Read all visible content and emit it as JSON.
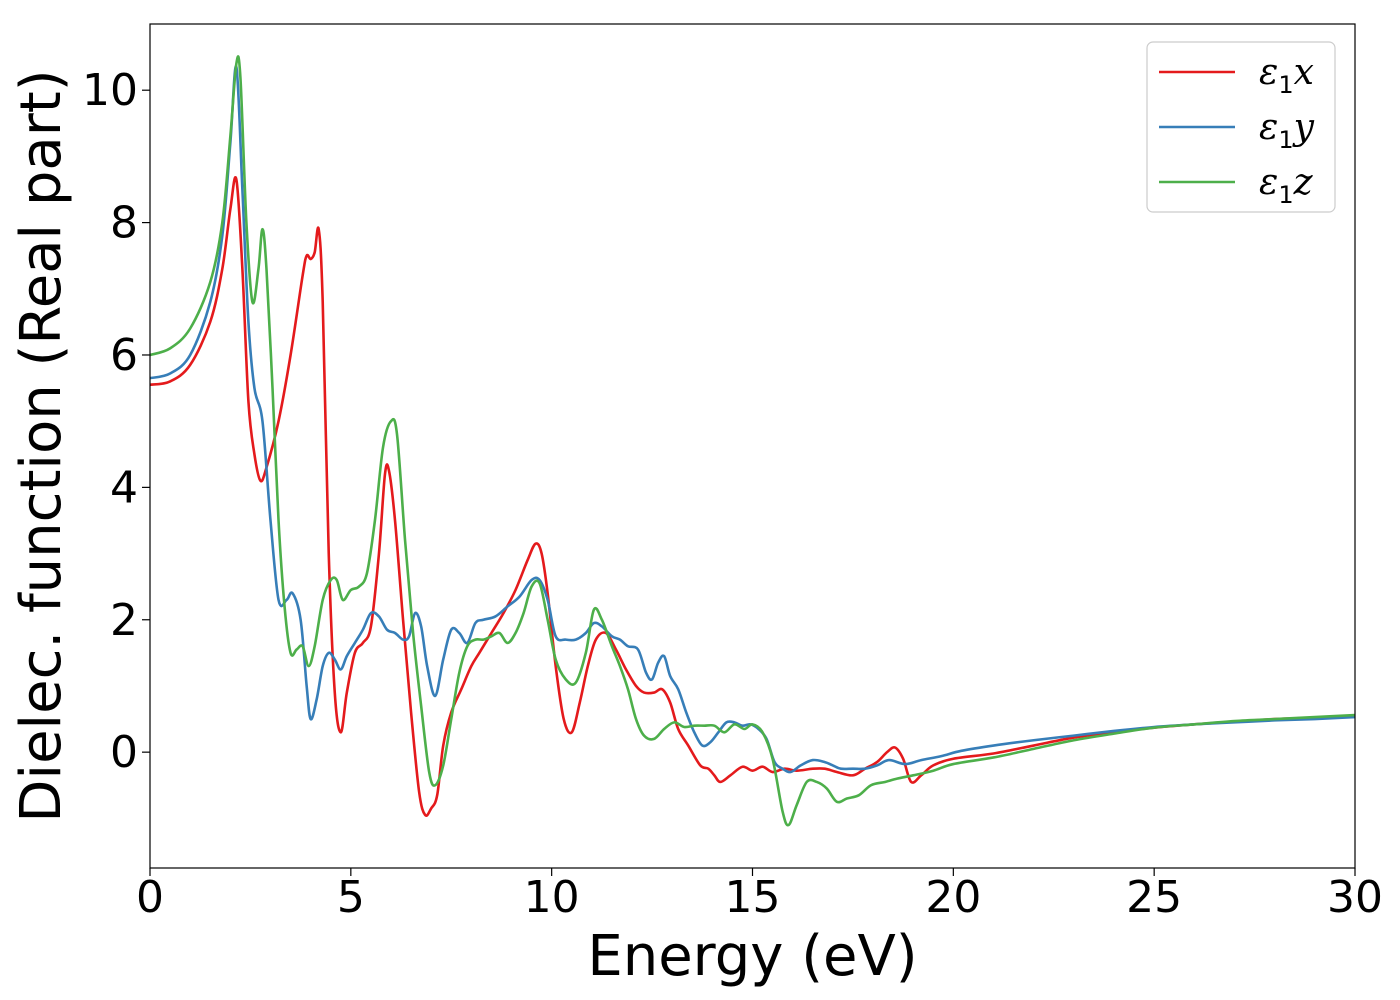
{
  "chart_data": {
    "type": "line",
    "title": "",
    "xlabel": "Energy (eV)",
    "ylabel": "Dielec. function (Real part)",
    "xlim": [
      0,
      30
    ],
    "ylim": [
      -1.75,
      11
    ],
    "xticks": [
      0,
      5,
      10,
      15,
      20,
      25,
      30
    ],
    "yticks": [
      0,
      2,
      4,
      6,
      8,
      10
    ],
    "grid": false,
    "legend_position": "top-right",
    "series": [
      {
        "name": "ε1x",
        "legend_main": "ε",
        "legend_sub": "1",
        "legend_suffix": "x",
        "color": "#e41a1c",
        "points": [
          [
            0,
            5.55
          ],
          [
            0.5,
            5.6
          ],
          [
            1.0,
            5.85
          ],
          [
            1.5,
            6.5
          ],
          [
            1.8,
            7.3
          ],
          [
            2.0,
            8.2
          ],
          [
            2.15,
            8.65
          ],
          [
            2.3,
            7.3
          ],
          [
            2.45,
            5.3
          ],
          [
            2.6,
            4.5
          ],
          [
            2.75,
            4.1
          ],
          [
            2.9,
            4.3
          ],
          [
            3.2,
            5.0
          ],
          [
            3.5,
            6.0
          ],
          [
            3.8,
            7.2
          ],
          [
            3.9,
            7.5
          ],
          [
            4.0,
            7.45
          ],
          [
            4.1,
            7.55
          ],
          [
            4.2,
            7.9
          ],
          [
            4.3,
            6.8
          ],
          [
            4.45,
            3.0
          ],
          [
            4.6,
            0.9
          ],
          [
            4.75,
            0.3
          ],
          [
            4.9,
            0.9
          ],
          [
            5.1,
            1.5
          ],
          [
            5.3,
            1.65
          ],
          [
            5.5,
            1.9
          ],
          [
            5.7,
            3.0
          ],
          [
            5.85,
            4.2
          ],
          [
            5.95,
            4.25
          ],
          [
            6.1,
            3.5
          ],
          [
            6.3,
            2.0
          ],
          [
            6.5,
            0.6
          ],
          [
            6.7,
            -0.6
          ],
          [
            6.85,
            -0.95
          ],
          [
            7.0,
            -0.85
          ],
          [
            7.15,
            -0.65
          ],
          [
            7.3,
            0.1
          ],
          [
            7.5,
            0.6
          ],
          [
            7.75,
            0.95
          ],
          [
            8.0,
            1.3
          ],
          [
            8.2,
            1.5
          ],
          [
            8.5,
            1.8
          ],
          [
            8.8,
            2.1
          ],
          [
            9.1,
            2.45
          ],
          [
            9.4,
            2.9
          ],
          [
            9.6,
            3.15
          ],
          [
            9.75,
            3.0
          ],
          [
            9.9,
            2.4
          ],
          [
            10.1,
            1.3
          ],
          [
            10.3,
            0.5
          ],
          [
            10.5,
            0.3
          ],
          [
            10.7,
            0.75
          ],
          [
            10.9,
            1.3
          ],
          [
            11.1,
            1.7
          ],
          [
            11.35,
            1.8
          ],
          [
            11.6,
            1.55
          ],
          [
            11.85,
            1.25
          ],
          [
            12.1,
            1.0
          ],
          [
            12.3,
            0.9
          ],
          [
            12.55,
            0.9
          ],
          [
            12.75,
            0.95
          ],
          [
            12.95,
            0.75
          ],
          [
            13.15,
            0.35
          ],
          [
            13.4,
            0.1
          ],
          [
            13.7,
            -0.2
          ],
          [
            13.9,
            -0.25
          ],
          [
            14.05,
            -0.35
          ],
          [
            14.2,
            -0.45
          ],
          [
            14.45,
            -0.35
          ],
          [
            14.75,
            -0.22
          ],
          [
            15.0,
            -0.28
          ],
          [
            15.25,
            -0.22
          ],
          [
            15.5,
            -0.3
          ],
          [
            15.8,
            -0.25
          ],
          [
            16.1,
            -0.28
          ],
          [
            16.5,
            -0.25
          ],
          [
            16.8,
            -0.25
          ],
          [
            17.1,
            -0.3
          ],
          [
            17.5,
            -0.35
          ],
          [
            17.8,
            -0.25
          ],
          [
            18.1,
            -0.15
          ],
          [
            18.35,
            0.0
          ],
          [
            18.55,
            0.07
          ],
          [
            18.75,
            -0.1
          ],
          [
            18.95,
            -0.45
          ],
          [
            19.2,
            -0.35
          ],
          [
            19.5,
            -0.2
          ],
          [
            20.0,
            -0.1
          ],
          [
            21.0,
            -0.02
          ],
          [
            22.0,
            0.1
          ],
          [
            23.0,
            0.22
          ],
          [
            24.0,
            0.3
          ],
          [
            25.0,
            0.37
          ],
          [
            26.0,
            0.42
          ],
          [
            27.0,
            0.46
          ],
          [
            28.0,
            0.5
          ],
          [
            29.0,
            0.52
          ],
          [
            30.0,
            0.55
          ]
        ]
      },
      {
        "name": "ε1y",
        "legend_main": "ε",
        "legend_sub": "1",
        "legend_suffix": "y",
        "color": "#377eb8",
        "points": [
          [
            0,
            5.65
          ],
          [
            0.5,
            5.72
          ],
          [
            1.0,
            6.0
          ],
          [
            1.5,
            6.8
          ],
          [
            1.8,
            7.8
          ],
          [
            2.0,
            9.2
          ],
          [
            2.15,
            10.35
          ],
          [
            2.3,
            8.5
          ],
          [
            2.45,
            6.5
          ],
          [
            2.6,
            5.5
          ],
          [
            2.8,
            5.0
          ],
          [
            3.0,
            3.5
          ],
          [
            3.2,
            2.3
          ],
          [
            3.4,
            2.3
          ],
          [
            3.55,
            2.4
          ],
          [
            3.75,
            2.0
          ],
          [
            3.9,
            1.0
          ],
          [
            4.0,
            0.5
          ],
          [
            4.15,
            0.8
          ],
          [
            4.3,
            1.3
          ],
          [
            4.45,
            1.5
          ],
          [
            4.6,
            1.4
          ],
          [
            4.75,
            1.25
          ],
          [
            4.9,
            1.45
          ],
          [
            5.1,
            1.65
          ],
          [
            5.3,
            1.85
          ],
          [
            5.5,
            2.1
          ],
          [
            5.7,
            2.05
          ],
          [
            5.9,
            1.85
          ],
          [
            6.1,
            1.8
          ],
          [
            6.3,
            1.7
          ],
          [
            6.45,
            1.75
          ],
          [
            6.6,
            2.1
          ],
          [
            6.75,
            1.9
          ],
          [
            6.9,
            1.3
          ],
          [
            7.1,
            0.85
          ],
          [
            7.3,
            1.4
          ],
          [
            7.5,
            1.85
          ],
          [
            7.7,
            1.8
          ],
          [
            7.9,
            1.65
          ],
          [
            8.1,
            1.95
          ],
          [
            8.3,
            2.0
          ],
          [
            8.6,
            2.05
          ],
          [
            8.9,
            2.2
          ],
          [
            9.2,
            2.35
          ],
          [
            9.5,
            2.6
          ],
          [
            9.7,
            2.6
          ],
          [
            9.9,
            2.3
          ],
          [
            10.1,
            1.75
          ],
          [
            10.35,
            1.7
          ],
          [
            10.6,
            1.7
          ],
          [
            10.85,
            1.8
          ],
          [
            11.05,
            1.95
          ],
          [
            11.25,
            1.9
          ],
          [
            11.5,
            1.75
          ],
          [
            11.7,
            1.7
          ],
          [
            11.9,
            1.6
          ],
          [
            12.15,
            1.55
          ],
          [
            12.35,
            1.2
          ],
          [
            12.5,
            1.1
          ],
          [
            12.65,
            1.35
          ],
          [
            12.8,
            1.45
          ],
          [
            12.95,
            1.15
          ],
          [
            13.15,
            0.95
          ],
          [
            13.35,
            0.6
          ],
          [
            13.55,
            0.3
          ],
          [
            13.75,
            0.1
          ],
          [
            13.95,
            0.15
          ],
          [
            14.15,
            0.3
          ],
          [
            14.35,
            0.45
          ],
          [
            14.55,
            0.45
          ],
          [
            14.75,
            0.4
          ],
          [
            14.95,
            0.42
          ],
          [
            15.15,
            0.35
          ],
          [
            15.35,
            0.2
          ],
          [
            15.55,
            -0.15
          ],
          [
            15.75,
            -0.25
          ],
          [
            15.95,
            -0.3
          ],
          [
            16.2,
            -0.2
          ],
          [
            16.5,
            -0.12
          ],
          [
            16.8,
            -0.15
          ],
          [
            17.0,
            -0.2
          ],
          [
            17.2,
            -0.25
          ],
          [
            17.5,
            -0.25
          ],
          [
            17.8,
            -0.25
          ],
          [
            18.1,
            -0.2
          ],
          [
            18.4,
            -0.12
          ],
          [
            18.8,
            -0.18
          ],
          [
            19.2,
            -0.12
          ],
          [
            19.7,
            -0.06
          ],
          [
            20.2,
            0.02
          ],
          [
            21.0,
            0.1
          ],
          [
            22.0,
            0.18
          ],
          [
            23.0,
            0.25
          ],
          [
            24.0,
            0.32
          ],
          [
            25.0,
            0.38
          ],
          [
            26.0,
            0.42
          ],
          [
            27.0,
            0.45
          ],
          [
            28.0,
            0.48
          ],
          [
            29.0,
            0.5
          ],
          [
            30.0,
            0.53
          ]
        ]
      },
      {
        "name": "ε1z",
        "legend_main": "ε",
        "legend_sub": "1",
        "legend_suffix": "z",
        "color": "#4daf4a",
        "points": [
          [
            0,
            6.0
          ],
          [
            0.5,
            6.1
          ],
          [
            1.0,
            6.4
          ],
          [
            1.5,
            7.1
          ],
          [
            1.8,
            8.0
          ],
          [
            2.0,
            9.3
          ],
          [
            2.15,
            10.4
          ],
          [
            2.25,
            10.2
          ],
          [
            2.4,
            8.0
          ],
          [
            2.55,
            6.8
          ],
          [
            2.7,
            7.3
          ],
          [
            2.8,
            7.9
          ],
          [
            2.9,
            7.3
          ],
          [
            3.05,
            5.5
          ],
          [
            3.2,
            3.5
          ],
          [
            3.35,
            2.2
          ],
          [
            3.5,
            1.5
          ],
          [
            3.65,
            1.55
          ],
          [
            3.8,
            1.6
          ],
          [
            3.95,
            1.3
          ],
          [
            4.1,
            1.6
          ],
          [
            4.3,
            2.3
          ],
          [
            4.5,
            2.6
          ],
          [
            4.65,
            2.6
          ],
          [
            4.8,
            2.3
          ],
          [
            5.0,
            2.45
          ],
          [
            5.2,
            2.5
          ],
          [
            5.4,
            2.7
          ],
          [
            5.6,
            3.5
          ],
          [
            5.8,
            4.6
          ],
          [
            6.0,
            5.0
          ],
          [
            6.15,
            4.8
          ],
          [
            6.35,
            3.2
          ],
          [
            6.55,
            1.8
          ],
          [
            6.75,
            0.7
          ],
          [
            6.95,
            -0.3
          ],
          [
            7.1,
            -0.5
          ],
          [
            7.3,
            -0.2
          ],
          [
            7.5,
            0.5
          ],
          [
            7.7,
            1.2
          ],
          [
            7.9,
            1.6
          ],
          [
            8.1,
            1.7
          ],
          [
            8.3,
            1.7
          ],
          [
            8.5,
            1.75
          ],
          [
            8.7,
            1.8
          ],
          [
            8.9,
            1.65
          ],
          [
            9.1,
            1.8
          ],
          [
            9.3,
            2.1
          ],
          [
            9.5,
            2.5
          ],
          [
            9.7,
            2.55
          ],
          [
            9.9,
            2.0
          ],
          [
            10.1,
            1.4
          ],
          [
            10.35,
            1.1
          ],
          [
            10.6,
            1.05
          ],
          [
            10.85,
            1.5
          ],
          [
            11.05,
            2.15
          ],
          [
            11.25,
            2.0
          ],
          [
            11.5,
            1.6
          ],
          [
            11.7,
            1.3
          ],
          [
            11.9,
            0.95
          ],
          [
            12.1,
            0.5
          ],
          [
            12.3,
            0.25
          ],
          [
            12.55,
            0.2
          ],
          [
            12.8,
            0.35
          ],
          [
            13.05,
            0.45
          ],
          [
            13.3,
            0.38
          ],
          [
            13.55,
            0.4
          ],
          [
            13.8,
            0.4
          ],
          [
            14.05,
            0.4
          ],
          [
            14.3,
            0.3
          ],
          [
            14.55,
            0.42
          ],
          [
            14.8,
            0.35
          ],
          [
            15.0,
            0.42
          ],
          [
            15.25,
            0.3
          ],
          [
            15.5,
            -0.1
          ],
          [
            15.75,
            -0.9
          ],
          [
            15.9,
            -1.1
          ],
          [
            16.1,
            -0.8
          ],
          [
            16.35,
            -0.45
          ],
          [
            16.6,
            -0.45
          ],
          [
            16.85,
            -0.55
          ],
          [
            17.1,
            -0.75
          ],
          [
            17.35,
            -0.7
          ],
          [
            17.65,
            -0.65
          ],
          [
            17.95,
            -0.5
          ],
          [
            18.3,
            -0.45
          ],
          [
            18.6,
            -0.4
          ],
          [
            19.0,
            -0.35
          ],
          [
            19.5,
            -0.28
          ],
          [
            20.0,
            -0.18
          ],
          [
            21.0,
            -0.08
          ],
          [
            22.0,
            0.05
          ],
          [
            23.0,
            0.18
          ],
          [
            24.0,
            0.28
          ],
          [
            25.0,
            0.37
          ],
          [
            26.0,
            0.42
          ],
          [
            27.0,
            0.47
          ],
          [
            28.0,
            0.5
          ],
          [
            29.0,
            0.53
          ],
          [
            30.0,
            0.56
          ]
        ]
      }
    ]
  }
}
